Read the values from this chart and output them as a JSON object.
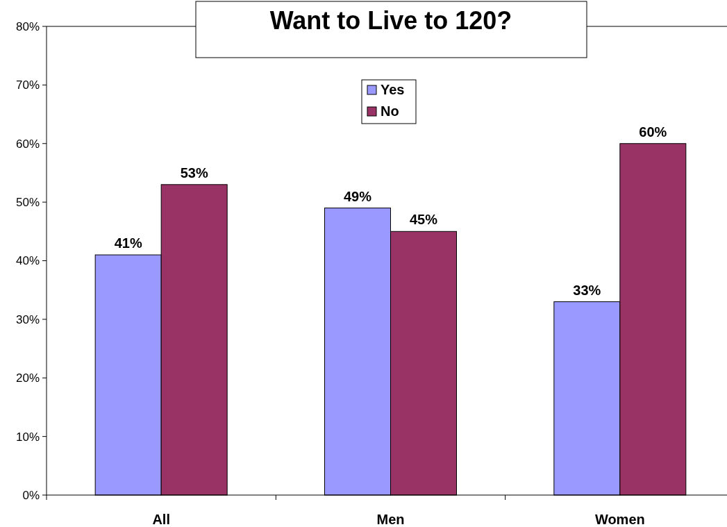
{
  "chart_data": {
    "type": "bar",
    "title": "Want to Live to 120?",
    "categories": [
      "All",
      "Men",
      "Women"
    ],
    "series": [
      {
        "name": "Yes",
        "color": "#9999ff",
        "values": [
          41,
          49,
          33
        ],
        "value_labels": [
          "41%",
          "49%",
          "33%"
        ]
      },
      {
        "name": "No",
        "color": "#993366",
        "values": [
          53,
          45,
          60
        ],
        "value_labels": [
          "53%",
          "45%",
          "60%"
        ]
      }
    ],
    "ylim": [
      0,
      80
    ],
    "yticks": [
      {
        "value": 0,
        "label": "0%"
      },
      {
        "value": 10,
        "label": "10%"
      },
      {
        "value": 20,
        "label": "20%"
      },
      {
        "value": 30,
        "label": "30%"
      },
      {
        "value": 40,
        "label": "40%"
      },
      {
        "value": 50,
        "label": "50%"
      },
      {
        "value": 60,
        "label": "60%"
      },
      {
        "value": 70,
        "label": "70%"
      },
      {
        "value": 80,
        "label": "80%"
      }
    ],
    "legend": "top",
    "grid": false
  }
}
